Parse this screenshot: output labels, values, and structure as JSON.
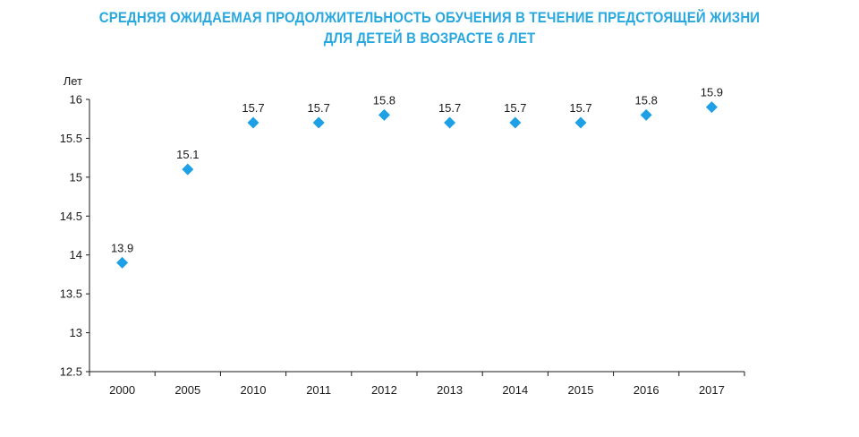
{
  "title_line1": "СРЕДНЯЯ ОЖИДАЕМАЯ ПРОДОЛЖИТЕЛЬНОСТЬ ОБУЧЕНИЯ В ТЕЧЕНИЕ ПРЕДСТОЯЩЕЙ ЖИЗНИ",
  "title_line2": "ДЛЯ ДЕТЕЙ В ВОЗРАСТЕ 6 ЛЕТ",
  "colors": {
    "title": "#29a8e0",
    "marker": "#1ea0e6",
    "axis": "#1a1a1a"
  },
  "chart_data": {
    "type": "scatter",
    "title": "СРЕДНЯЯ ОЖИДАЕМАЯ ПРОДОЛЖИТЕЛЬНОСТЬ ОБУЧЕНИЯ В ТЕЧЕНИЕ ПРЕДСТОЯЩЕЙ ЖИЗНИ ДЛЯ ДЕТЕЙ В ВОЗРАСТЕ 6 ЛЕТ",
    "ylabel": "Лет",
    "xlabel": "",
    "categories": [
      "2000",
      "2005",
      "2010",
      "2011",
      "2012",
      "2013",
      "2014",
      "2015",
      "2016",
      "2017"
    ],
    "values": [
      13.9,
      15.1,
      15.7,
      15.7,
      15.8,
      15.7,
      15.7,
      15.7,
      15.8,
      15.9
    ],
    "data_labels": [
      "13.9",
      "15.1",
      "15.7",
      "15.7",
      "15.8",
      "15.7",
      "15.7",
      "15.7",
      "15.8",
      "15.9"
    ],
    "yticks": [
      "12.5",
      "13",
      "13.5",
      "14",
      "14.5",
      "15",
      "15.5",
      "16"
    ],
    "ylim": [
      12.5,
      16
    ],
    "marker": "diamond",
    "grid": false,
    "legend": "none"
  }
}
